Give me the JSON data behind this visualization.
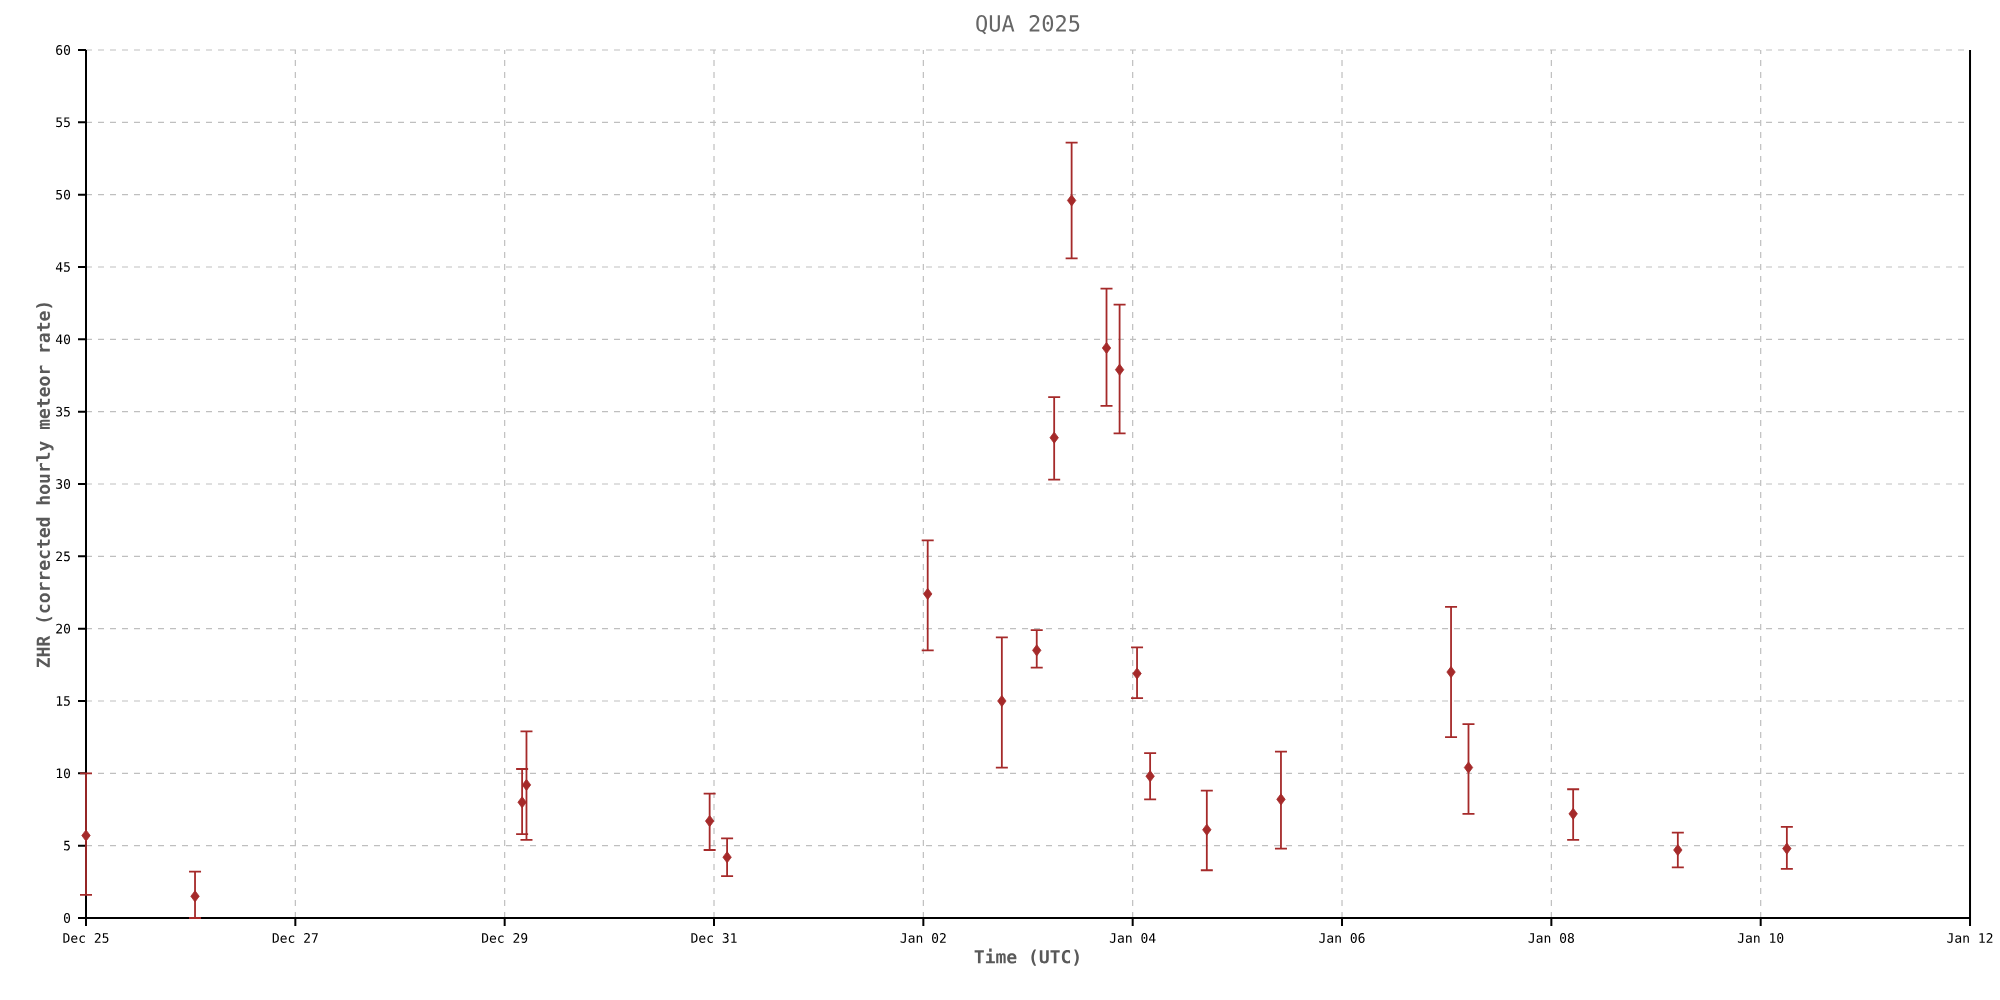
{
  "chart_data": {
    "type": "scatter",
    "title": "QUA 2025",
    "xlabel": "Time (UTC)",
    "ylabel": "ZHR (corrected hourly meteor rate)",
    "x": [
      "2024-12-25T00:00",
      "2024-12-26T01:00",
      "2024-12-29T04:00",
      "2024-12-29T05:00",
      "2024-12-30T23:00",
      "2024-12-31T03:00",
      "2025-01-02T01:00",
      "2025-01-02T18:00",
      "2025-01-03T02:00",
      "2025-01-03T06:00",
      "2025-01-03T10:00",
      "2025-01-03T18:00",
      "2025-01-03T21:00",
      "2025-01-04T01:00",
      "2025-01-04T04:00",
      "2025-01-04T17:00",
      "2025-01-05T10:00",
      "2025-01-07T01:00",
      "2025-01-07T05:00",
      "2025-01-08T05:00",
      "2025-01-09T05:00",
      "2025-01-10T06:00"
    ],
    "values": [
      5.7,
      1.5,
      8.0,
      9.2,
      6.7,
      4.2,
      22.4,
      15.0,
      18.5,
      33.2,
      49.6,
      39.4,
      37.9,
      16.9,
      9.8,
      6.1,
      8.2,
      17.0,
      10.4,
      7.2,
      4.7,
      4.8
    ],
    "errors": [
      [
        1.6,
        10.0
      ],
      [
        0,
        3.2
      ],
      [
        5.8,
        10.3
      ],
      [
        5.4,
        12.9
      ],
      [
        4.7,
        8.6
      ],
      [
        2.9,
        5.5
      ],
      [
        18.5,
        26.1
      ],
      [
        10.4,
        19.4
      ],
      [
        17.3,
        19.9
      ],
      [
        30.3,
        36.0
      ],
      [
        45.6,
        53.6
      ],
      [
        35.4,
        43.5
      ],
      [
        33.5,
        42.4
      ],
      [
        15.2,
        18.7
      ],
      [
        8.2,
        11.4
      ],
      [
        3.3,
        8.8
      ],
      [
        4.8,
        11.5
      ],
      [
        12.5,
        21.5
      ],
      [
        7.2,
        13.4
      ],
      [
        5.4,
        8.9
      ],
      [
        3.5,
        5.9
      ],
      [
        3.4,
        6.3
      ]
    ],
    "color": "#a52a2a",
    "marker": "diamond",
    "grid": true,
    "xlim": [
      "2024-12-25",
      "2025-01-12"
    ],
    "xticks": [
      {
        "value": "2024-12-25",
        "label": "Dec 25"
      },
      {
        "value": "2024-12-27",
        "label": "Dec 27"
      },
      {
        "value": "2024-12-29",
        "label": "Dec 29"
      },
      {
        "value": "2024-12-31",
        "label": "Dec 31"
      },
      {
        "value": "2025-01-02",
        "label": "Jan 02"
      },
      {
        "value": "2025-01-04",
        "label": "Jan 04"
      },
      {
        "value": "2025-01-06",
        "label": "Jan 06"
      },
      {
        "value": "2025-01-08",
        "label": "Jan 08"
      },
      {
        "value": "2025-01-10",
        "label": "Jan 10"
      },
      {
        "value": "2025-01-12",
        "label": "Jan 12"
      }
    ],
    "ylim": [
      0,
      60
    ],
    "yticks": [
      0,
      5,
      10,
      15,
      20,
      25,
      30,
      35,
      40,
      45,
      50,
      55,
      60
    ]
  }
}
